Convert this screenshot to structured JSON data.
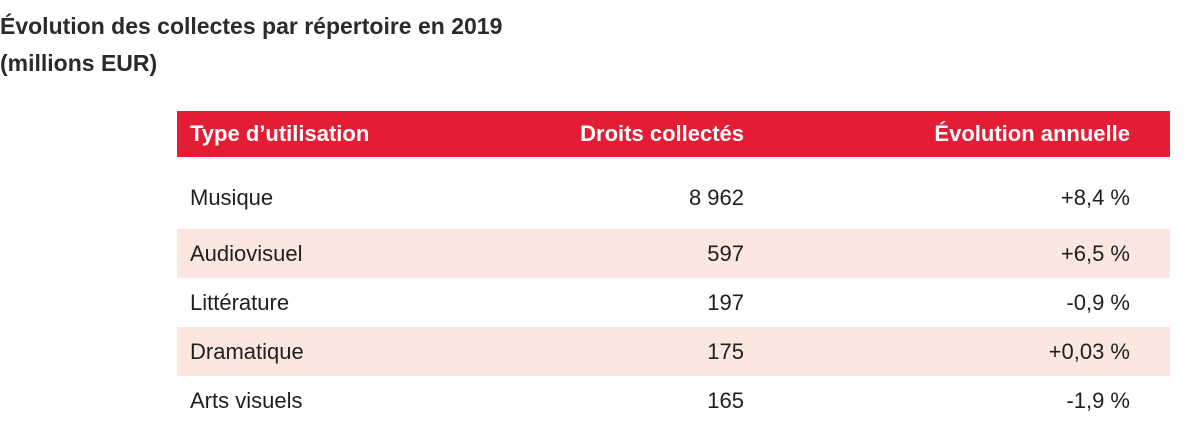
{
  "title": {
    "line1": "Évolution des collectes par répertoire en 2019",
    "line2": "(millions EUR)"
  },
  "table": {
    "headers": [
      "Type d’utilisation",
      "Droits collectés",
      "Évolution annuelle"
    ],
    "rows": [
      {
        "type": "Musique",
        "droits": "8 962",
        "evolution": "+8,4 %"
      },
      {
        "type": "Audiovisuel",
        "droits": "597",
        "evolution": "+6,5 %"
      },
      {
        "type": "Littérature",
        "droits": "197",
        "evolution": "-0,9 %"
      },
      {
        "type": "Dramatique",
        "droits": "175",
        "evolution": "+0,03 %"
      },
      {
        "type": "Arts visuels",
        "droits": "165",
        "evolution": "-1,9 %"
      }
    ]
  },
  "colors": {
    "header_bg": "#e31d33",
    "shaded_row_bg": "#fbe6e0"
  }
}
